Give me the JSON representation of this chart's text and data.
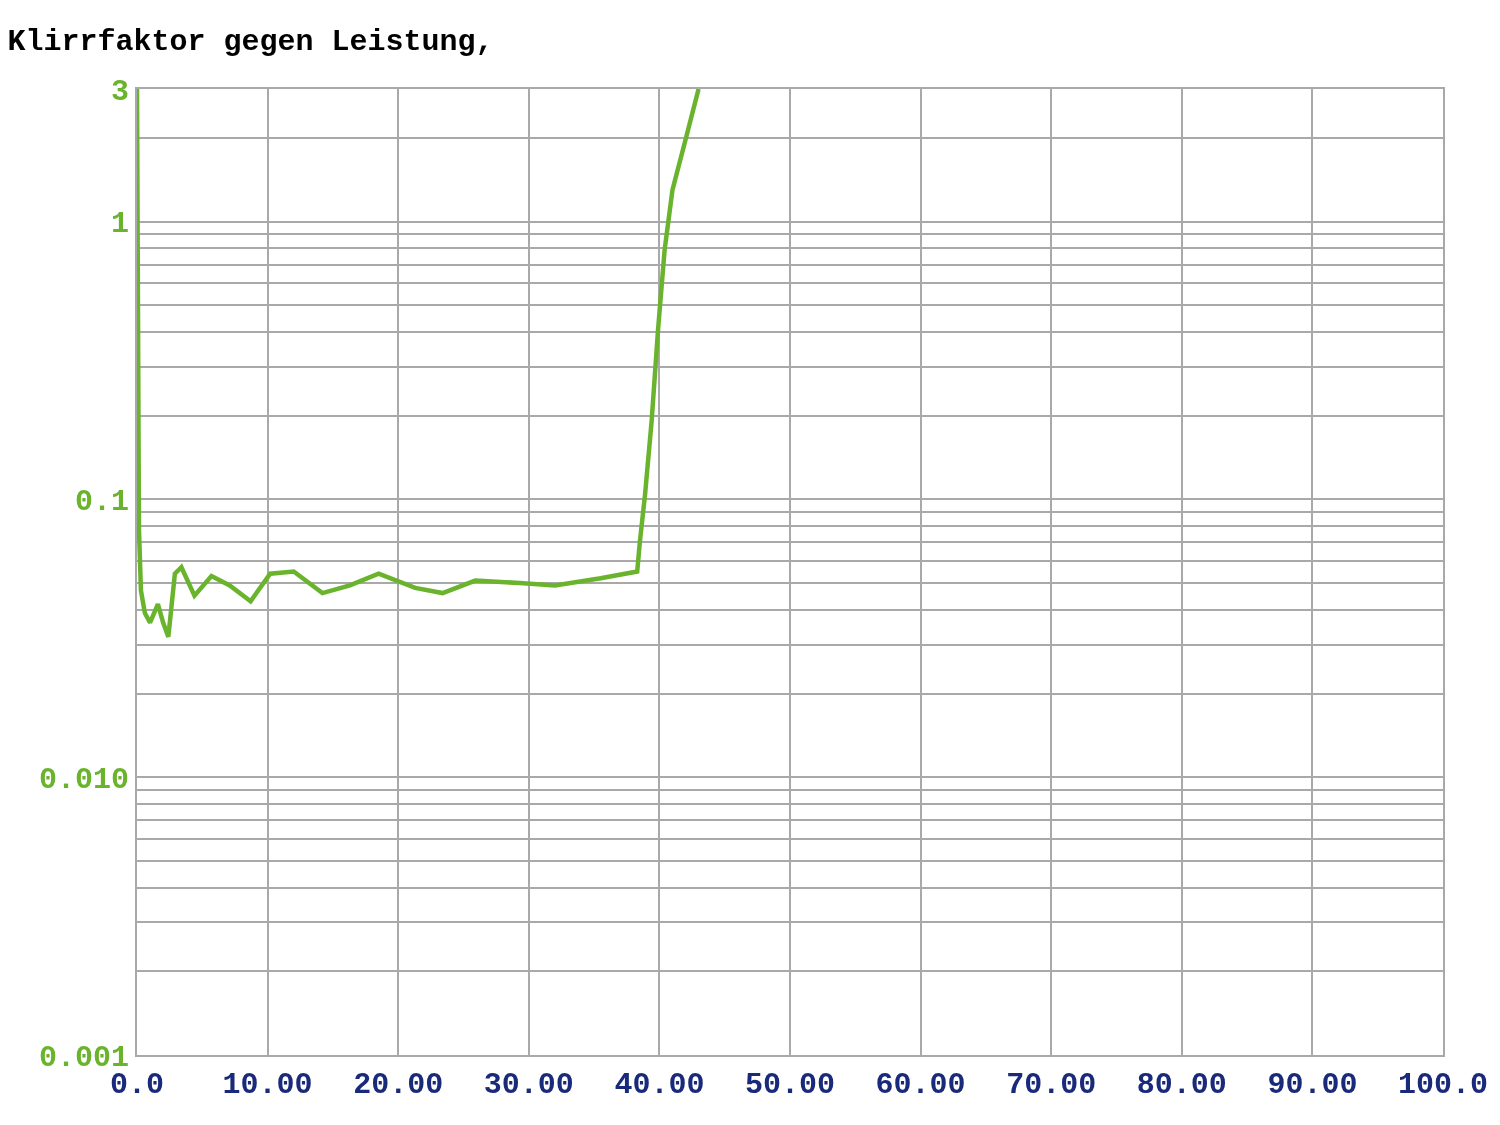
{
  "chart_data": {
    "type": "line",
    "title": "Klirrfaktor gegen Leistung,",
    "log": "y",
    "grid": true,
    "marker": "none",
    "line_style": "solid",
    "xlim": [
      0,
      100
    ],
    "xticks": [
      {
        "value": 0,
        "label": "0.0"
      },
      {
        "value": 10,
        "label": "10.00"
      },
      {
        "value": 20,
        "label": "20.00"
      },
      {
        "value": 30,
        "label": "30.00"
      },
      {
        "value": 40,
        "label": "40.00"
      },
      {
        "value": 50,
        "label": "50.00"
      },
      {
        "value": 60,
        "label": "60.00"
      },
      {
        "value": 70,
        "label": "70.00"
      },
      {
        "value": 80,
        "label": "80.00"
      },
      {
        "value": 90,
        "label": "90.00"
      },
      {
        "value": 100,
        "label": "100.0"
      }
    ],
    "ylim": [
      0.001,
      3
    ],
    "yticks": [
      {
        "value": 0.001,
        "label": "0.001"
      },
      {
        "value": 0.01,
        "label": "0.010"
      },
      0.1,
      1,
      3
    ],
    "series": [
      {
        "color": "#6ab42d",
        "x": [
          0,
          0.15,
          0.3,
          0.6,
          1.0,
          1.6,
          2.0,
          2.4,
          2.9,
          3.4,
          4.4,
          5.7,
          7.1,
          8.7,
          10.2,
          12.0,
          14.2,
          16.3,
          18.5,
          21.3,
          23.4,
          25.9,
          29.3,
          32.0,
          35.5,
          38.3,
          38.5,
          38.9,
          39.4,
          39.9,
          40.4,
          41.0,
          42.0,
          43.0
        ],
        "values": [
          3,
          0.078,
          0.047,
          0.039,
          0.036,
          0.042,
          0.036,
          0.032,
          0.054,
          0.057,
          0.045,
          0.053,
          0.049,
          0.043,
          0.054,
          0.055,
          0.046,
          0.049,
          0.054,
          0.048,
          0.046,
          0.051,
          0.05,
          0.049,
          0.052,
          0.055,
          0.07,
          0.104,
          0.19,
          0.41,
          0.79,
          1.3,
          1.97,
          3
        ]
      }
    ]
  }
}
